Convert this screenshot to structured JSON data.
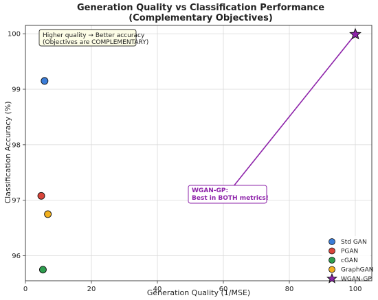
{
  "chart_data": {
    "type": "scatter",
    "title": "Generation Quality vs Classification Performance",
    "subtitle": "(Complementary Objectives)",
    "xlabel": "Generation Quality (1/MSE)",
    "ylabel": "Classification Accuracy (%)",
    "xlim": [
      0,
      105
    ],
    "ylim": [
      95.55,
      100.15
    ],
    "xticks": [
      0,
      20,
      40,
      60,
      80,
      100
    ],
    "yticks": [
      96,
      97,
      98,
      99,
      100
    ],
    "grid": true,
    "legend_position": "bottom-right",
    "series": [
      {
        "name": "Std GAN",
        "color": "#3b7dd8",
        "marker": "circle",
        "points": [
          {
            "x": 5.8,
            "y": 99.15
          }
        ]
      },
      {
        "name": "PGAN",
        "color": "#d9453b",
        "marker": "circle",
        "points": [
          {
            "x": 4.8,
            "y": 97.08
          }
        ]
      },
      {
        "name": "cGAN",
        "color": "#2e9e4f",
        "marker": "circle",
        "points": [
          {
            "x": 5.3,
            "y": 95.75
          }
        ]
      },
      {
        "name": "GraphGAN",
        "color": "#f2b01e",
        "marker": "circle",
        "points": [
          {
            "x": 6.8,
            "y": 96.75
          }
        ]
      },
      {
        "name": "WGAN-GP",
        "color": "#8e24aa",
        "marker": "star",
        "points": [
          {
            "x": 100,
            "y": 99.99
          }
        ]
      }
    ],
    "annotations": [
      {
        "name": "info-box",
        "lines": [
          "Higher quality → Better accuracy",
          "(Objectives are COMPLEMENTARY)"
        ],
        "background": "#fdfde6",
        "border": "#333333"
      },
      {
        "name": "callout",
        "lines": [
          "WGAN-GP:",
          "Best in BOTH metrics!"
        ],
        "color": "#8e24aa",
        "points_to": {
          "x": 100,
          "y": 99.99
        }
      }
    ]
  }
}
